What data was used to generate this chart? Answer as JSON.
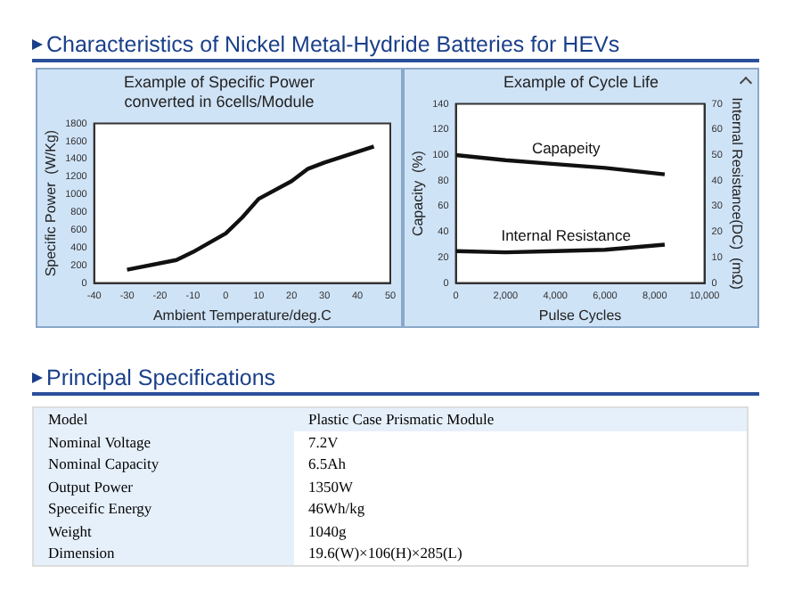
{
  "chart_data": [
    {
      "type": "line",
      "title": "Example of Specific Power converted in 6cells/Module",
      "xlabel": "Ambient Temperature/deg.C",
      "ylabel": "Specific Power  (W/Kg)",
      "annotations": [
        "Characteristics of Nickel Metal-Hydride Batteries for HEVs"
      ],
      "x": [
        -30,
        -15,
        -10,
        0,
        5,
        10,
        20,
        25,
        30,
        45
      ],
      "series": [
        {
          "color": "#111111",
          "values": [
            150,
            260,
            350,
            560,
            740,
            950,
            1150,
            1290,
            1360,
            1540
          ]
        }
      ],
      "xlim": [
        -40,
        50
      ],
      "xticks": [
        -40,
        -30,
        -20,
        -10,
        0,
        10,
        20,
        30,
        40,
        50
      ],
      "ylim": [
        0,
        1800
      ],
      "yticks": [
        0,
        200,
        400,
        600,
        800,
        1000,
        1200,
        1400,
        1600,
        1800
      ],
      "grid": false,
      "legend": false,
      "marker": "none",
      "line_style": "solid"
    },
    {
      "type": "line",
      "title": "Example of Cycle Life",
      "xlabel": "Pulse Cycles",
      "ylabel": "Capacity  (%)",
      "y2label": "Internal Resistance(DC)  (mΩ)",
      "x": [
        0,
        2000,
        4000,
        6000,
        8400
      ],
      "series": [
        {
          "name": "Capapeity",
          "color": "#111111",
          "values": [
            100,
            96,
            93,
            90,
            85
          ]
        },
        {
          "name": "Internal Resistance",
          "color": "#111111",
          "axis": "y2",
          "values": [
            12.5,
            12,
            12.5,
            13,
            15
          ]
        }
      ],
      "xlim": [
        0,
        10000
      ],
      "xticks": [
        0,
        {
          "value": 2000,
          "label": "2,000"
        },
        {
          "value": 4000,
          "label": "4,000"
        },
        {
          "value": 6000,
          "label": "6,000"
        },
        {
          "value": 8000,
          "label": "8,000"
        },
        {
          "value": 10000,
          "label": "10,000"
        }
      ],
      "ylim": [
        0,
        140
      ],
      "yticks": [
        0,
        20,
        40,
        60,
        80,
        100,
        120,
        140
      ],
      "y2lim": [
        0,
        70
      ],
      "y2ticks": [
        0,
        10,
        20,
        30,
        40,
        50,
        60,
        70
      ],
      "grid": false,
      "legend": false,
      "marker": "none",
      "line_style": "solid"
    },
    {
      "type": "other",
      "title": "Principal Specifications",
      "annotations": [
        "Model",
        "Plastic Case Prismatic Module",
        "Nominal Voltage",
        "7.2V",
        "Nominal Capacity",
        "6.5Ah",
        "Output Power",
        "1350W",
        "Speceific Energy",
        "46Wh/kg",
        "Weight",
        "1040g",
        "Dimension",
        "19.6(W)×106(H)×285(L)"
      ]
    }
  ]
}
